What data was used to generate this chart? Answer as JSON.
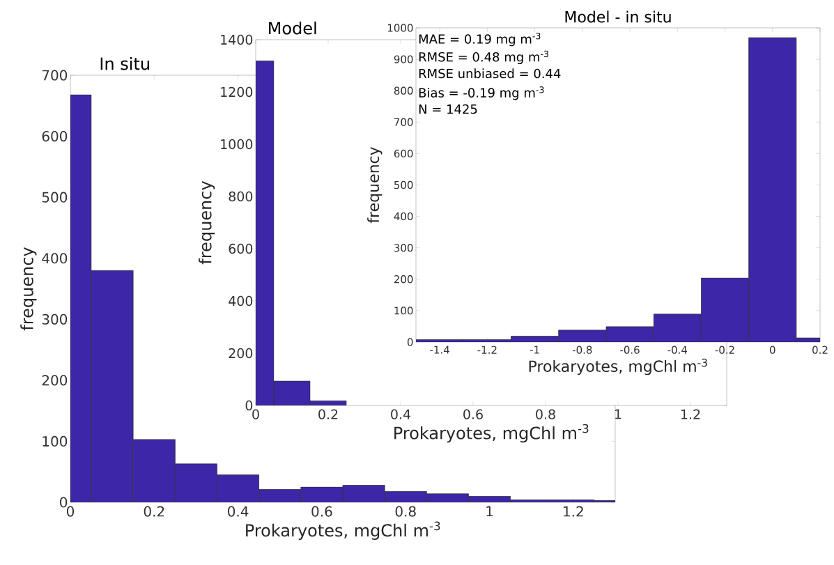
{
  "chart_data": [
    {
      "type": "histogram",
      "title": "In situ",
      "xlabel": "Prokaryotes, mgChl m$^{-3}$",
      "ylabel": "frequency",
      "color": "#3d26a8",
      "bins": [
        0,
        0.05,
        0.15,
        0.25,
        0.35,
        0.45,
        0.55,
        0.65,
        0.75,
        0.85,
        0.95,
        1.05,
        1.15,
        1.25,
        1.3
      ],
      "values": [
        668,
        380,
        103,
        63,
        45,
        21,
        25,
        28,
        18,
        14,
        10,
        4,
        4,
        3
      ],
      "xlim": [
        0,
        1.3
      ],
      "ylim": [
        0,
        700
      ],
      "xticks": [
        0,
        0.2,
        0.4,
        0.6,
        0.8,
        1,
        1.2
      ],
      "yticks": [
        0,
        100,
        200,
        300,
        400,
        500,
        600,
        700
      ]
    },
    {
      "type": "histogram",
      "title": "Model",
      "xlabel": "Prokaryotes, mgChl m$^{-3}$",
      "ylabel": "frequency",
      "color": "#3d26a8",
      "bins": [
        0,
        0.05,
        0.15,
        0.25
      ],
      "values": [
        1319,
        93,
        18
      ],
      "xlim": [
        0,
        1.3
      ],
      "ylim": [
        0,
        1400
      ],
      "xticks": [
        0,
        0.2,
        0.4,
        0.6,
        0.8,
        1,
        1.2
      ],
      "yticks": [
        0,
        200,
        400,
        600,
        800,
        1000,
        1200,
        1400
      ]
    },
    {
      "type": "histogram",
      "title": "Model - in situ",
      "xlabel": "Prokaryotes, mgChl m$^{-3}$",
      "ylabel": "frequency",
      "color": "#3d26a8",
      "bins": [
        -1.5,
        -1.3,
        -1.1,
        -0.9,
        -0.7,
        -0.5,
        -0.3,
        -0.1,
        0.1,
        0.2
      ],
      "values": [
        8,
        8,
        19,
        38,
        49,
        89,
        204,
        969,
        13
      ],
      "xlim": [
        -1.5,
        0.2
      ],
      "ylim": [
        0,
        1000
      ],
      "xticks": [
        -1.4,
        -1.2,
        -1,
        -0.8,
        -0.6,
        -0.4,
        -0.2,
        0,
        0.2
      ],
      "yticks": [
        0,
        100,
        200,
        300,
        400,
        500,
        600,
        700,
        800,
        900,
        1000
      ],
      "annotations": [
        "MAE = 0.19 mg m$^{-3}$",
        "RMSE = 0.48 mg m$^{-3}$",
        "RMSE unbiased = 0.44",
        "Bias = -0.19 mg m$^{-3}$",
        "N = 1425"
      ]
    }
  ]
}
